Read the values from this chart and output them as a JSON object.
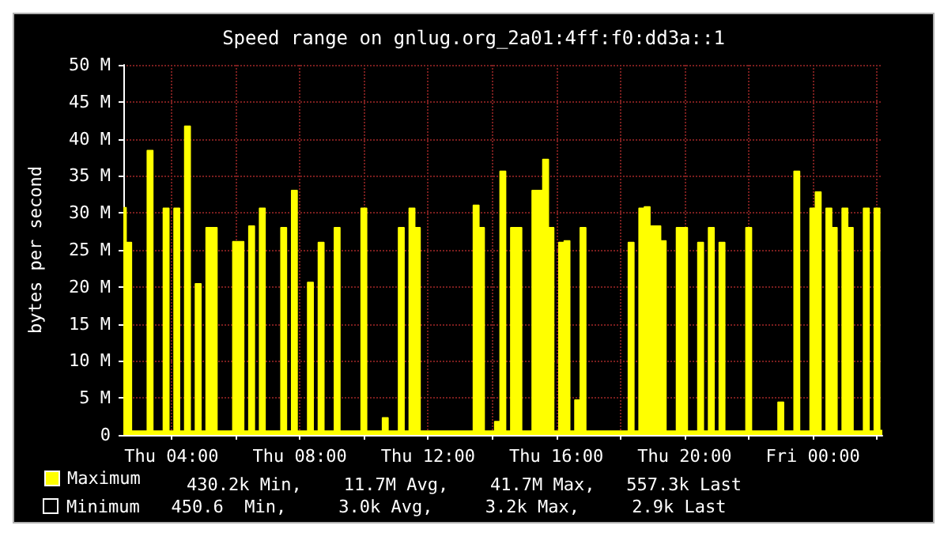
{
  "chart_data": {
    "type": "area",
    "title": "Speed range on gnlug.org_2a01:4ff:f0:dd3a::1",
    "ylabel": "bytes per second",
    "categories": [
      null,
      null,
      null,
      null,
      null,
      null,
      null,
      null,
      null,
      "Thu 04:00",
      null,
      null,
      null,
      null,
      null,
      null,
      null,
      null,
      null,
      null,
      null,
      null,
      null,
      null,
      null,
      null,
      null,
      null,
      null,
      null,
      null,
      null,
      null,
      "Thu 08:00",
      null,
      null,
      null,
      null,
      null,
      null,
      null,
      null,
      null,
      null,
      null,
      null,
      null,
      null,
      null,
      null,
      null,
      null,
      null,
      null,
      null,
      null,
      null,
      "Thu 12:00",
      null,
      null,
      null,
      null,
      null,
      null,
      null,
      null,
      null,
      null,
      null,
      null,
      null,
      null,
      null,
      null,
      null,
      null,
      null,
      null,
      null,
      null,
      null,
      "Thu 16:00",
      null,
      null,
      null,
      null,
      null,
      null,
      null,
      null,
      null,
      null,
      null,
      null,
      null,
      null,
      null,
      null,
      null,
      null,
      null,
      null,
      null,
      null,
      null,
      "Thu 20:00",
      null,
      null,
      null,
      null,
      null,
      null,
      null,
      null,
      null,
      null,
      null,
      null,
      null,
      null,
      null,
      null,
      null,
      null,
      null,
      null,
      null,
      null,
      null,
      "Fri 00:00",
      null,
      null,
      null,
      null,
      null,
      null,
      null,
      null,
      null,
      null,
      null,
      null,
      null
    ],
    "ylim": [
      0,
      50
    ],
    "yticks": [
      0,
      {
        "value": 5,
        "label": "5 M"
      },
      {
        "value": 10,
        "label": "10 M"
      },
      {
        "value": 15,
        "label": "15 M"
      },
      {
        "value": 20,
        "label": "20 M"
      },
      {
        "value": 25,
        "label": "25 M"
      },
      {
        "value": 30,
        "label": "30 M"
      },
      {
        "value": 35,
        "label": "35 M"
      },
      {
        "value": 40,
        "label": "40 M"
      },
      {
        "value": 45,
        "label": "45 M"
      },
      {
        "value": 50,
        "label": "50 M"
      }
    ],
    "grid": true,
    "legend": "bottom left",
    "annotations": [
      "430.2k Min,    11.7M Avg,    41.7M Max,   557.3k Last",
      "Minimum   450.6  Min,     3.0k Avg,     3.2k Max,     2.9k Last"
    ],
    "series": [
      {
        "name": "Maximum",
        "color": "#ffff00",
        "values": [
          30.7,
          26,
          0.5,
          0.5,
          0.5,
          38.4,
          0.5,
          0.5,
          30.6,
          0.5,
          30.6,
          0.5,
          41.7,
          0.5,
          20.4,
          0.5,
          28,
          28,
          0.5,
          0.5,
          0.5,
          26.1,
          26.1,
          0.5,
          28.2,
          0.5,
          30.6,
          0.5,
          0.5,
          0.5,
          28,
          0.5,
          33,
          0.5,
          0.5,
          20.6,
          0.5,
          26,
          0.5,
          0.5,
          28,
          0.5,
          0.5,
          0.5,
          0.5,
          30.6,
          0.5,
          0.5,
          0.5,
          2.3,
          0.5,
          0.5,
          28,
          0.5,
          30.6,
          28,
          0.5,
          0.5,
          0.5,
          0.5,
          0.5,
          0.5,
          0.5,
          0.5,
          0.5,
          0.5,
          31,
          28,
          0.5,
          0.5,
          1.8,
          35.6,
          0.5,
          28,
          28,
          0.5,
          0.5,
          33,
          33,
          37.2,
          28,
          0.5,
          26,
          26.2,
          0.5,
          4.7,
          28,
          0.5,
          0.5,
          0.5,
          0.5,
          0.5,
          0.5,
          0.5,
          0.5,
          26,
          0.5,
          30.6,
          30.8,
          28.2,
          28.2,
          26.2,
          0.5,
          0.5,
          28,
          28,
          0.5,
          0.5,
          26,
          0.5,
          28,
          0.5,
          26,
          0.5,
          0.5,
          0.5,
          0.5,
          28,
          0.5,
          0.5,
          0.5,
          0.5,
          0.5,
          4.4,
          0.5,
          0.5,
          35.6,
          0.5,
          0.5,
          30.6,
          32.8,
          0.5,
          30.6,
          28,
          0.5,
          30.6,
          28,
          0.5,
          0.5,
          30.6,
          0.5,
          30.6,
          0.6
        ]
      }
    ]
  }
}
